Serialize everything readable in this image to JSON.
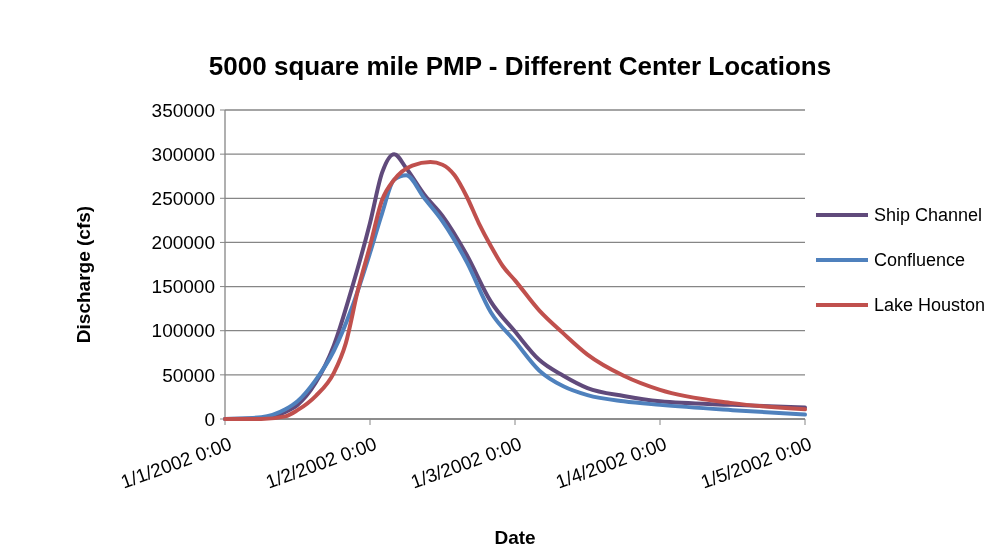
{
  "chart_data": {
    "type": "line",
    "title": "5000 square mile PMP - Different  Center Locations",
    "xlabel": "Date",
    "ylabel": "Discharge (cfs)",
    "x": [
      "2002-01-01T00:00",
      "2002-01-01T06:00",
      "2002-01-01T10:00",
      "2002-01-01T12:00",
      "2002-01-01T15:00",
      "2002-01-01T18:00",
      "2002-01-01T20:00",
      "2002-01-01T21:00",
      "2002-01-01T22:00",
      "2002-01-02T00:00",
      "2002-01-02T02:00",
      "2002-01-02T04:00",
      "2002-01-02T06:00",
      "2002-01-02T07:00",
      "2002-01-02T09:00",
      "2002-01-02T10:00",
      "2002-01-02T12:00",
      "2002-01-02T14:00",
      "2002-01-02T16:00",
      "2002-01-02T18:00",
      "2002-01-02T20:00",
      "2002-01-02T22:00",
      "2002-01-03T00:00",
      "2002-01-03T04:00",
      "2002-01-03T08:00",
      "2002-01-03T12:00",
      "2002-01-03T18:00",
      "2002-01-04T00:00",
      "2002-01-04T12:00",
      "2002-01-05T00:00"
    ],
    "series": [
      {
        "name": "Ship Channel",
        "color": "#604a7b",
        "values": [
          0,
          1000,
          8000,
          16000,
          41000,
          83000,
          null,
          148000,
          null,
          222000,
          279000,
          300000,
          284000,
          null,
          254000,
          null,
          230000,
          null,
          186000,
          null,
          133000,
          null,
          99000,
          67000,
          49000,
          35000,
          26000,
          20000,
          16000,
          13000
        ]
      },
      {
        "name": "Confluence",
        "color": "#4f81bd",
        "values": [
          0,
          2000,
          11000,
          20000,
          44000,
          77000,
          null,
          126000,
          null,
          188000,
          233000,
          271000,
          276000,
          null,
          250000,
          null,
          224000,
          null,
          178000,
          null,
          121000,
          null,
          88000,
          55000,
          37000,
          27000,
          20000,
          16000,
          10000,
          5000
        ]
      },
      {
        "name": "Lake Houston",
        "color": "#c0504d",
        "values": [
          0,
          0,
          3000,
          10000,
          26000,
          52000,
          86000,
          null,
          146000,
          196000,
          248000,
          271000,
          null,
          287000,
          null,
          291000,
          288000,
          276000,
          252000,
          222000,
          196000,
          173000,
          157000,
          123000,
          97000,
          73000,
          49000,
          33000,
          18000,
          11000
        ]
      }
    ],
    "xlim": [
      "2002-01-01T00:00",
      "2002-01-05T00:00"
    ],
    "xticks": [
      {
        "value": "2002-01-01T00:00",
        "label": "1/1/2002 0:00"
      },
      {
        "value": "2002-01-02T00:00",
        "label": "1/2/2002 0:00"
      },
      {
        "value": "2002-01-03T00:00",
        "label": "1/3/2002 0:00"
      },
      {
        "value": "2002-01-04T00:00",
        "label": "1/4/2002 0:00"
      },
      {
        "value": "2002-01-05T00:00",
        "label": "1/5/2002 0:00"
      }
    ],
    "ylim": [
      0,
      350000
    ],
    "yticks": [
      0,
      50000,
      100000,
      150000,
      200000,
      250000,
      300000,
      350000
    ],
    "grid": "y",
    "legend": "right",
    "marker": "none",
    "line_style": "solid"
  }
}
